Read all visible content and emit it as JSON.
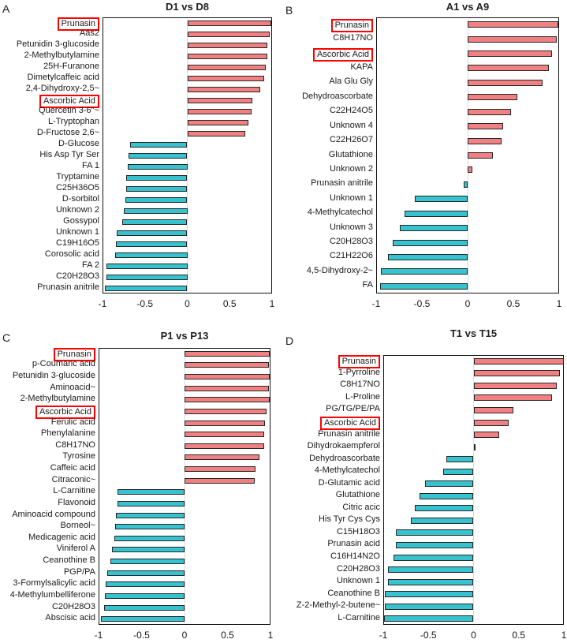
{
  "figure": {
    "colors": {
      "positive_bar": "#f08082",
      "negative_bar": "#36c3cf",
      "bar_outline": "#262626",
      "plot_border": "#121212",
      "zero_gridline": "#d9d9d9",
      "highlight_box": "#ff0000",
      "text": "#1a1a1a",
      "background": "#ffffff"
    }
  },
  "chart_data": [
    {
      "panel": "A",
      "type": "bar",
      "orientation": "horizontal",
      "title": "D1 vs D8",
      "xlim": [
        -1,
        1
      ],
      "xtick_values": [
        -1,
        -0.5,
        0,
        0.5,
        1
      ],
      "xtick_labels": [
        "-1",
        "-0.5",
        "0",
        "0.5",
        "1"
      ],
      "grid": "zero-line-only",
      "legend": "none",
      "highlighted_categories": [
        "Prunasin",
        "Ascorbic Acid"
      ],
      "categories": [
        "Prunasin",
        "Aas2",
        "Petunidin 3-glucoside",
        "2-Methylbutylamine",
        "25H-Furanone",
        "Dimetylcaffeic acid",
        "2,4-Dihydroxy-2,5~",
        "Ascorbic Acid",
        "Quercetin 3-6\"~",
        "L-Tryptophan",
        "D-Fructose 2,6~",
        "D-Glucose",
        "His Asp Tyr Ser",
        "FA 1",
        "Tryptamine",
        "C25H36O5",
        "D-sorbitol",
        "Unknown 2",
        "Gossypol",
        "Unknown 1",
        "C19H16O5",
        "Corosolic acid",
        "FA 2",
        "C20H28O3",
        "Prunasin anitrile"
      ],
      "values": [
        0.99,
        0.97,
        0.94,
        0.94,
        0.93,
        0.91,
        0.86,
        0.77,
        0.76,
        0.72,
        0.68,
        -0.67,
        -0.69,
        -0.7,
        -0.72,
        -0.72,
        -0.73,
        -0.75,
        -0.77,
        -0.83,
        -0.84,
        -0.85,
        -0.95,
        -0.95,
        -0.97
      ]
    },
    {
      "panel": "B",
      "type": "bar",
      "orientation": "horizontal",
      "title": "A1 vs A9",
      "xlim": [
        -1,
        1
      ],
      "xtick_values": [
        -1,
        -0.5,
        0,
        0.5,
        1
      ],
      "xtick_labels": [
        "-1",
        "-0.5",
        "0",
        "0.5",
        "1"
      ],
      "grid": "zero-line-only",
      "legend": "none",
      "highlighted_categories": [
        "Prunasin",
        "Ascorbic Acid"
      ],
      "categories": [
        "Prunasin",
        "C8H17NO",
        "Ascorbic Acid",
        "KAPA",
        "Ala Glu Gly",
        "Dehydroascorbate",
        "C22H24O5",
        "Unknown 4",
        "C22H26O7",
        "Glutathione",
        "Unknown 2",
        "Prunasin anitrile",
        "Unknown 1",
        "4-Methylcatechol",
        "Unknown 3",
        "C20H28O3",
        "C21H22O6",
        "4,5-Dihydroxy-2~",
        "FA"
      ],
      "values": [
        0.99,
        0.97,
        0.92,
        0.89,
        0.82,
        0.54,
        0.47,
        0.39,
        0.37,
        0.28,
        0.05,
        -0.04,
        -0.58,
        -0.69,
        -0.74,
        -0.82,
        -0.87,
        -0.95,
        -0.96
      ]
    },
    {
      "panel": "C",
      "type": "bar",
      "orientation": "horizontal",
      "title": "P1 vs P13",
      "xlim": [
        -1,
        1
      ],
      "xtick_values": [
        -1,
        -0.5,
        0,
        0.5,
        1
      ],
      "xtick_labels": [
        "-1",
        "-0.5",
        "0",
        "0.5",
        "1"
      ],
      "grid": "zero-line-only",
      "legend": "none",
      "highlighted_categories": [
        "Prunasin",
        "Ascorbic Acid"
      ],
      "categories": [
        "Prunasin",
        "p-Coumaric acid",
        "Petunidin 3-glucoside",
        "Aminoacid~",
        "2-Methylbutylamine",
        "Ascorbic Acid",
        "Ferulic acid",
        "Phenylalanine",
        "C8H17NO",
        "Tyrosine",
        "Caffeic acid",
        "Citraconic~",
        "L-Carnitine",
        "Flavonoid",
        "Aminoacid compound",
        "Borneol~",
        "Medicagenic acid",
        "Viniferol A",
        "Ceanothine B",
        "PGP/PA",
        "3-Formylsalicylic acid",
        "4-Methylumbelliferone",
        "C20H28O3",
        "Abscisic acid"
      ],
      "values": [
        0.99,
        0.98,
        0.99,
        0.98,
        0.99,
        0.95,
        0.94,
        0.93,
        0.93,
        0.87,
        0.83,
        0.82,
        -0.78,
        -0.78,
        -0.8,
        -0.81,
        -0.82,
        -0.84,
        -0.86,
        -0.9,
        -0.92,
        -0.93,
        -0.94,
        -0.97
      ]
    },
    {
      "panel": "D",
      "type": "bar",
      "orientation": "horizontal",
      "title": "T1 vs T15",
      "xlim": [
        -1,
        1
      ],
      "xtick_values": [
        -1,
        -0.5,
        0,
        0.5,
        1
      ],
      "xtick_labels": [
        "-1",
        "-0.5",
        "0",
        "0.5",
        "1"
      ],
      "grid": "zero-line-only",
      "legend": "none",
      "highlighted_categories": [
        "Prunasin",
        "Ascorbic Acid"
      ],
      "categories": [
        "Prunasin",
        "1-Pyrroline",
        "C8H17NO",
        "L-Proline",
        "PG/TG/PE/PA",
        "Ascorbic Acid",
        "Prunasin anitrile",
        "Dihydrokaempferol",
        "Dehydroascorbate",
        "4-Methylcatechol",
        "D-Glutamic acid",
        "Glutathione",
        "Citric acic",
        "His Tyr Cys Cys",
        "C15H18O3",
        "Prunasin acid",
        "C16H14N2O",
        "C20H28O3",
        "Unknown 1",
        "Ceanothine B",
        "Z-2-Methyl-2-butene~",
        "L-Carnitine"
      ],
      "values": [
        1.0,
        0.96,
        0.92,
        0.87,
        0.44,
        0.39,
        0.28,
        0.02,
        -0.3,
        -0.34,
        -0.54,
        -0.6,
        -0.65,
        -0.69,
        -0.86,
        -0.86,
        -0.89,
        -0.95,
        -0.95,
        -0.98,
        -0.98,
        -0.99
      ]
    }
  ]
}
